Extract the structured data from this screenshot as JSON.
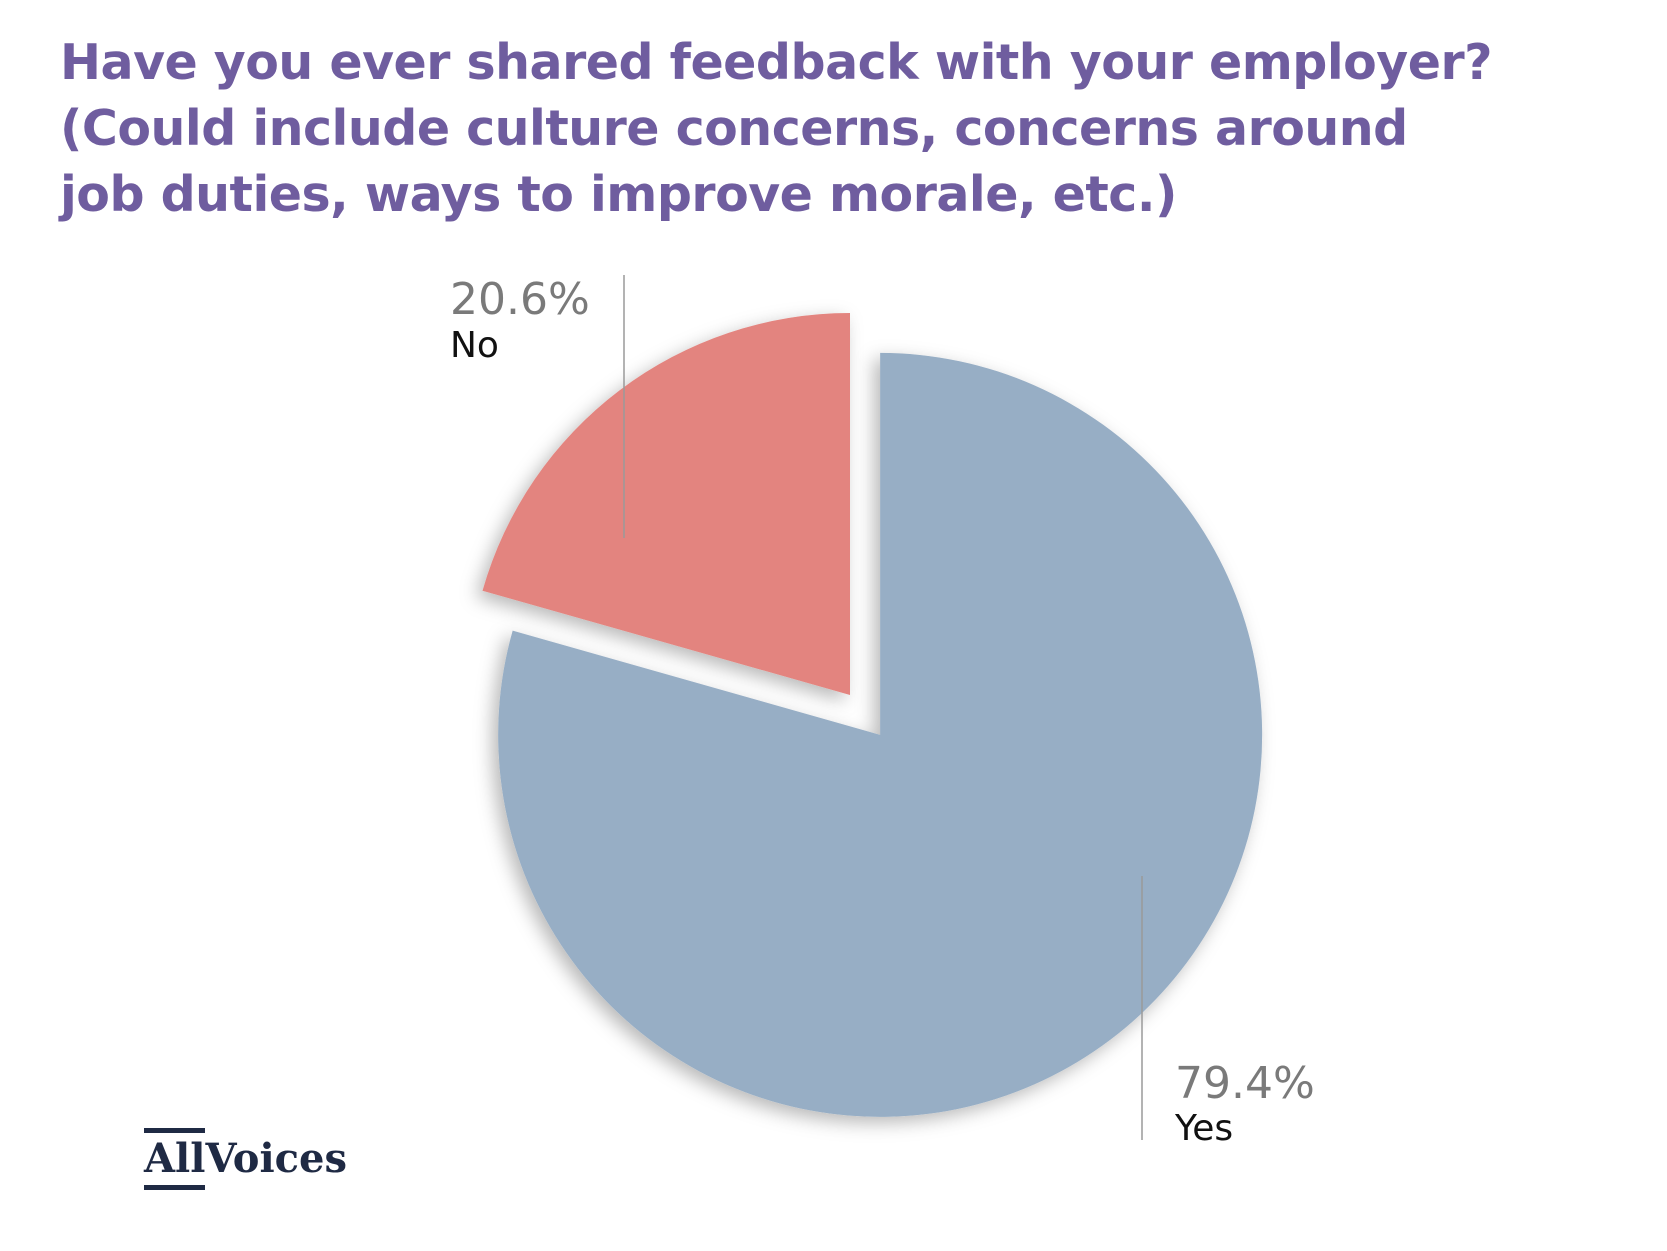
{
  "title_lines": [
    "Have you ever shared feedback with your employer?",
    "(Could include culture concerns, concerns around",
    "job duties, ways to improve morale, etc.)"
  ],
  "logo": {
    "part1": "All",
    "part2": "Voices",
    "color": "#1f2a44"
  },
  "chart_data": {
    "type": "pie",
    "title": "Have you ever shared feedback with your employer? (Could include culture concerns, concerns around job duties, ways to improve morale, etc.)",
    "start": "top, clockwise",
    "exploded": "Yes",
    "slices": [
      {
        "label": "Yes",
        "value": 79.4,
        "display": "79.4%",
        "color": "#97aec5"
      },
      {
        "label": "No",
        "value": 20.6,
        "display": "20.6%",
        "color": "#e3847f"
      }
    ]
  }
}
